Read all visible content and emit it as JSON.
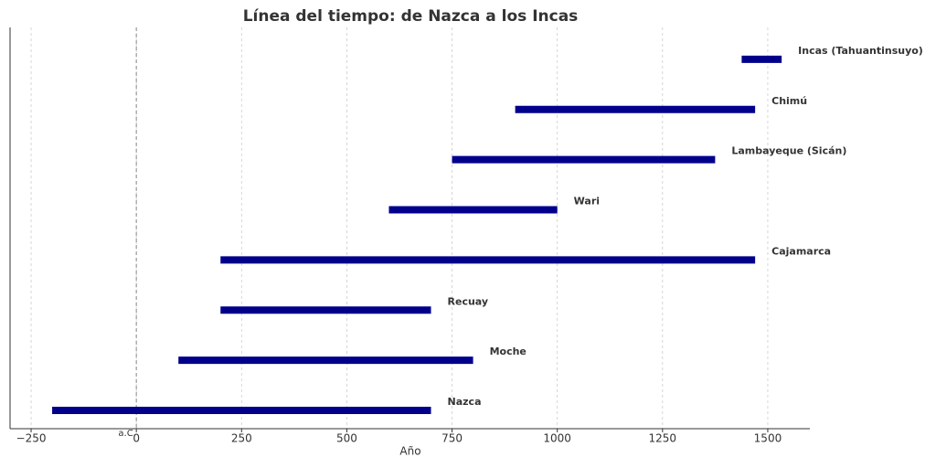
{
  "chart_data": {
    "type": "timeline",
    "title": "Línea del tiempo: de Nazca a los Incas",
    "x_label": "Año",
    "annotation": "a.C.",
    "ref_line": 0,
    "categories": [
      "Nazca",
      "Moche",
      "Recuay",
      "Cajamarca",
      "Wari",
      "Lambayeque (Sicán)",
      "Chimú",
      "Incas (Tahuantinsuyo)"
    ],
    "start": [
      -200,
      100,
      200,
      200,
      600,
      750,
      900,
      1438
    ],
    "end": [
      700,
      800,
      700,
      1470,
      1000,
      1375,
      1470,
      1533
    ],
    "color": "#00008b",
    "xlim": [
      -300,
      1600
    ],
    "xticks": [
      {
        "value": -250,
        "label": "−250"
      },
      0,
      250,
      500,
      750,
      1000,
      1250,
      1500
    ],
    "grid": true
  }
}
